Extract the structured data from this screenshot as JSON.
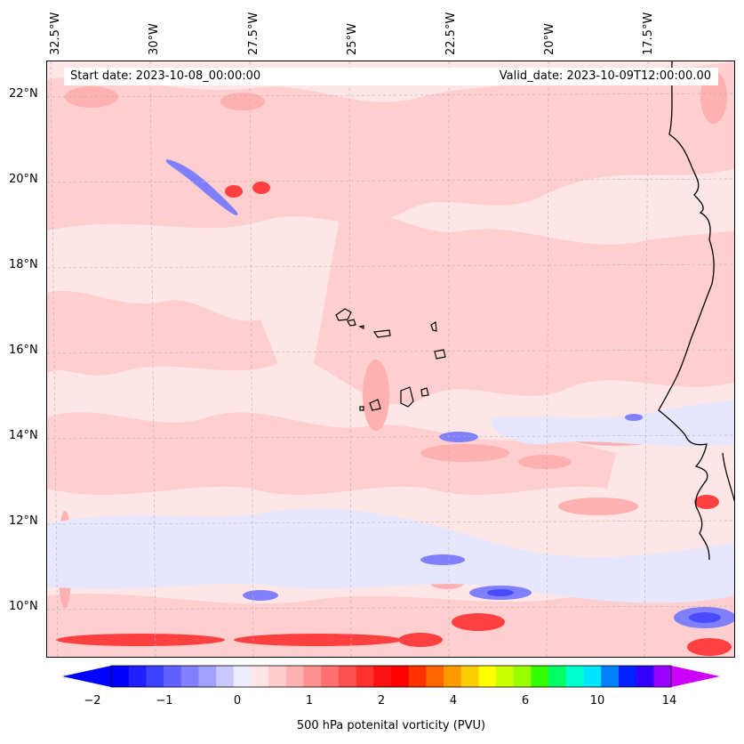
{
  "map": {
    "start_date": "Start date: 2023-10-08_00:00:00",
    "valid_date": "Valid_date: 2023-10-09T12:00:00.00",
    "lon_labels": [
      "32.5°W",
      "30°W",
      "27.5°W",
      "25°W",
      "22.5°W",
      "20°W",
      "17.5°W"
    ],
    "lat_labels": [
      "22°N",
      "20°N",
      "18°N",
      "16°N",
      "14°N",
      "12°N",
      "10°N"
    ],
    "field": "500 hPa potential vorticity shading over the eastern tropical Atlantic, Cape Verde islands and West African coast"
  },
  "colorbar": {
    "ticks": [
      "−2",
      "−1",
      "0",
      "1",
      "2",
      "4",
      "6",
      "10",
      "14"
    ],
    "label": "500 hPa potenital vorticity (PVU)",
    "colors": [
      "#0000ff",
      "#2020ff",
      "#4040ff",
      "#6060ff",
      "#8080ff",
      "#a0a0ff",
      "#c8c8ff",
      "#ececff",
      "#ffe6e6",
      "#ffcccc",
      "#ffb0b0",
      "#ff9090",
      "#ff7070",
      "#ff5050",
      "#ff3030",
      "#ff1010",
      "#ff0000",
      "#ff3300",
      "#ff6600",
      "#ff9900",
      "#ffcc00",
      "#ffff00",
      "#ccff00",
      "#99ff00",
      "#33ff00",
      "#00ff66",
      "#00ffcc",
      "#00e5ff",
      "#0080ff",
      "#0020ff",
      "#3300ff",
      "#9900ff"
    ],
    "extend_min_color": "#0000ff",
    "extend_max_color": "#cc00ff"
  }
}
